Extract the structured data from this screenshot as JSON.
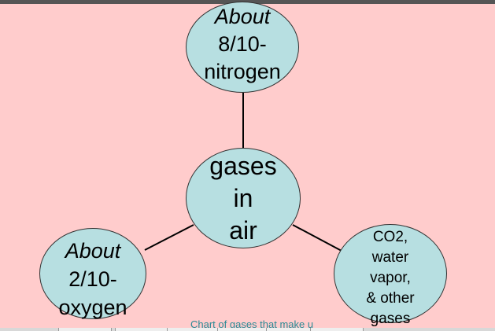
{
  "diagram": {
    "center": {
      "line1": "gases",
      "line2": "in",
      "line3": "air"
    },
    "top": {
      "line1": "About",
      "line2": "8/10-",
      "line3": "nitrogen"
    },
    "left": {
      "line1": "About",
      "line2": "2/10-",
      "line3": "oxygen"
    },
    "right": {
      "line1": "CO2,",
      "line2": "water",
      "line3": "vapor,",
      "line4": "& other",
      "line5": "gases"
    }
  },
  "caption": "Chart of gases that make u",
  "colors": {
    "background": "#ffcccc",
    "node_fill": "#b7dfe1",
    "node_stroke": "#333333",
    "caption": "#2a8a96"
  }
}
